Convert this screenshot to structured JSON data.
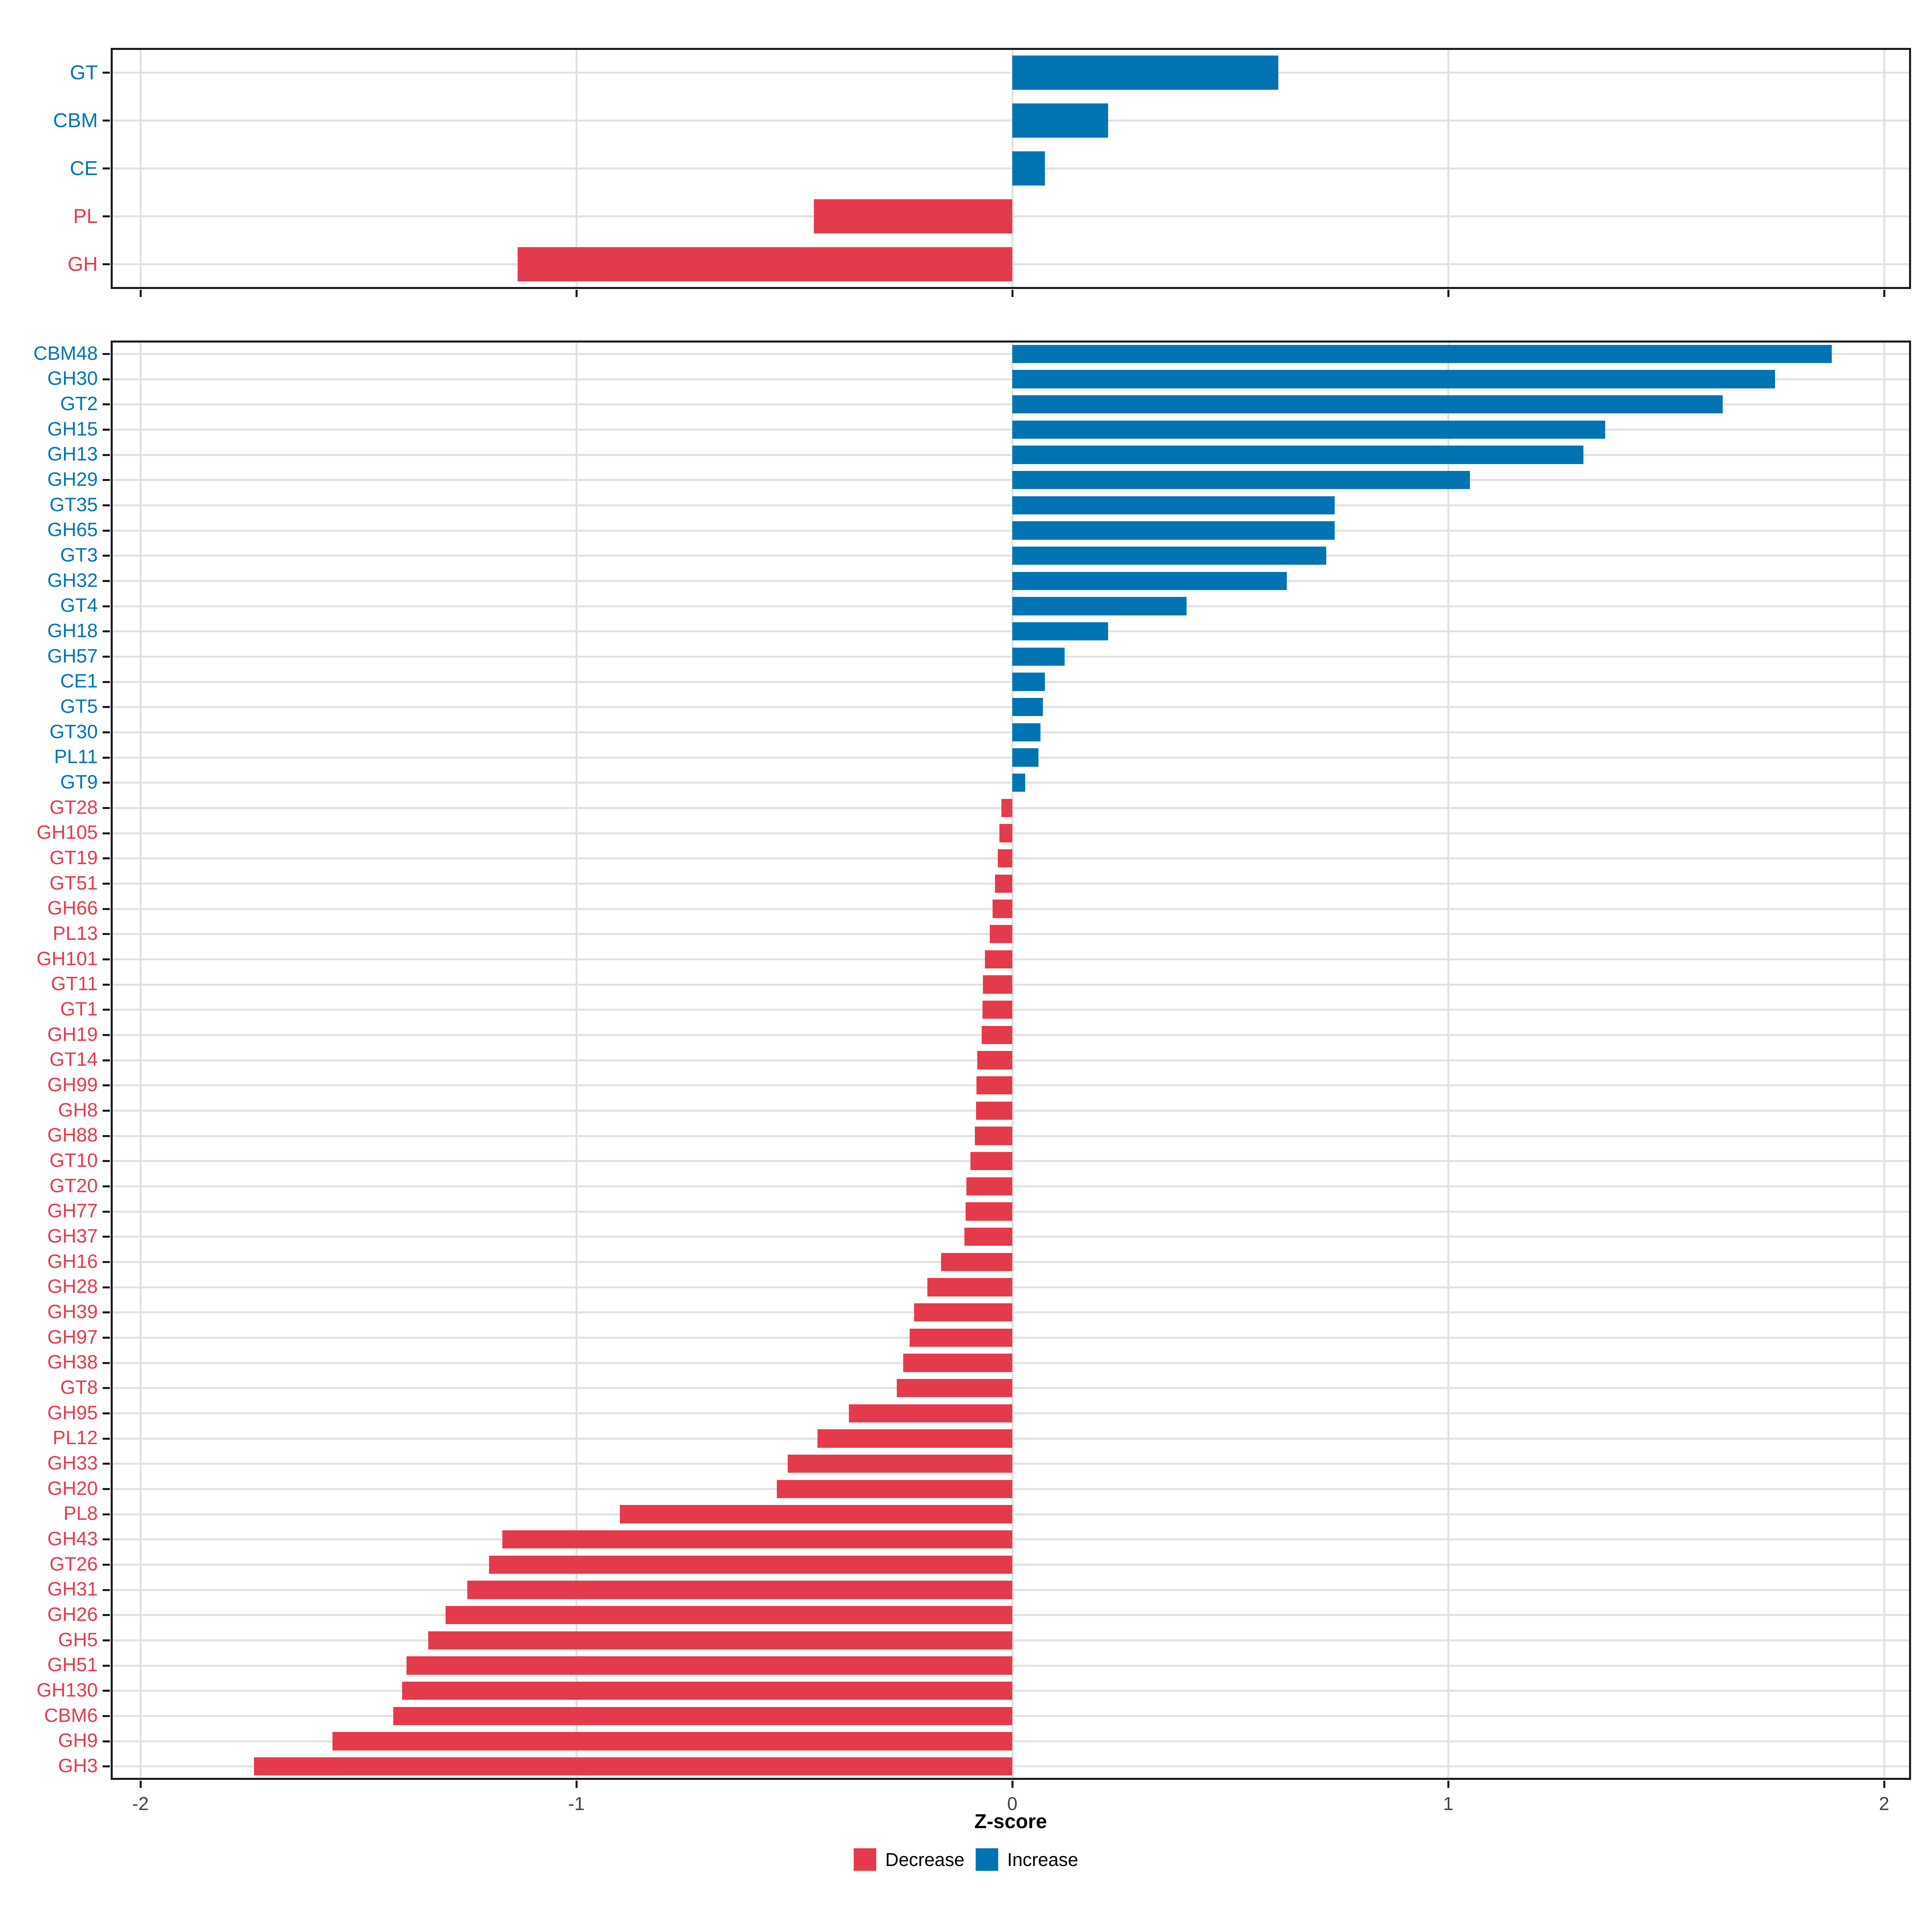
{
  "colors": {
    "increase": "#0074B3",
    "decrease": "#E43B4C",
    "grid": "#E2E2E2",
    "panel_border": "#1A1A1A",
    "tick": "#1A1A1A",
    "tick_label": "#404040"
  },
  "axis": {
    "title": "Z-score",
    "tick_labels": [
      "-2",
      "-1",
      "0",
      "1",
      "2"
    ],
    "tick_values": [
      -2,
      -1,
      0,
      1,
      2
    ]
  },
  "legend": {
    "items": [
      {
        "label": "Decrease",
        "color": "#E43B4C"
      },
      {
        "label": "Increase",
        "color": "#0074B3"
      }
    ]
  },
  "chart_data": [
    {
      "type": "bar",
      "orientation": "horizontal",
      "panel": "summary-top",
      "title": "",
      "xlabel": "Z-score",
      "xlim": [
        -2.06,
        2.06
      ],
      "grid": true,
      "categories": [
        "GT",
        "CBM",
        "CE",
        "PL",
        "GH"
      ],
      "values": [
        0.61,
        0.22,
        0.075,
        -0.455,
        -1.135
      ]
    },
    {
      "type": "bar",
      "orientation": "horizontal",
      "panel": "families-bottom",
      "title": "",
      "xlabel": "Z-score",
      "xlim": [
        -2.06,
        2.06
      ],
      "grid": true,
      "categories": [
        "CBM48",
        "GH30",
        "GT2",
        "GH15",
        "GH13",
        "GH29",
        "GT35",
        "GH65",
        "GT3",
        "GH32",
        "GT4",
        "GH18",
        "GH57",
        "CE1",
        "GT5",
        "GT30",
        "PL11",
        "GT9",
        "GT28",
        "GH105",
        "GT19",
        "GT51",
        "GH66",
        "PL13",
        "GH101",
        "GT11",
        "GT1",
        "GH19",
        "GT14",
        "GH99",
        "GH8",
        "GH88",
        "GT10",
        "GT20",
        "GH77",
        "GH37",
        "GH16",
        "GH28",
        "GH39",
        "GH97",
        "GH38",
        "GT8",
        "GH95",
        "PL12",
        "GH33",
        "GH20",
        "PL8",
        "GH43",
        "GT26",
        "GH31",
        "GH26",
        "GH5",
        "GH51",
        "GH130",
        "CBM6",
        "GH9",
        "GH3"
      ],
      "values": [
        1.88,
        1.75,
        1.63,
        1.36,
        1.31,
        1.05,
        0.74,
        0.74,
        0.72,
        0.63,
        0.4,
        0.22,
        0.12,
        0.075,
        0.07,
        0.065,
        0.06,
        0.03,
        -0.025,
        -0.03,
        -0.033,
        -0.04,
        -0.045,
        -0.052,
        -0.063,
        -0.067,
        -0.068,
        -0.07,
        -0.08,
        -0.082,
        -0.083,
        -0.086,
        -0.096,
        -0.105,
        -0.107,
        -0.11,
        -0.163,
        -0.195,
        -0.225,
        -0.235,
        -0.25,
        -0.265,
        -0.375,
        -0.447,
        -0.515,
        -0.54,
        -0.9,
        -1.17,
        -1.2,
        -1.25,
        -1.3,
        -1.34,
        -1.39,
        -1.4,
        -1.42,
        -1.56,
        -1.74
      ]
    }
  ]
}
